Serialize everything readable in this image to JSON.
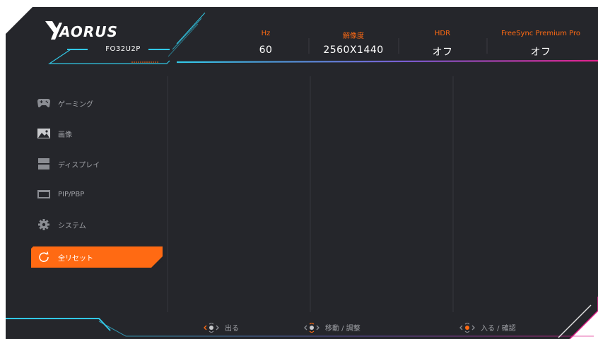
{
  "brand": {
    "logo_text": "AORUS",
    "model": "FO32U2P"
  },
  "colors": {
    "background": "#25262b",
    "accent": "#ff6a13",
    "cyan": "#32c8e6",
    "magenta": "#d1208d",
    "muted_text": "#a0a2a7"
  },
  "header": {
    "columns": [
      {
        "label": "Hz",
        "value": "60"
      },
      {
        "label": "解像度",
        "value": "2560X1440"
      },
      {
        "label": "HDR",
        "value": "オフ"
      },
      {
        "label": "FreeSync Premium Pro",
        "value": "オフ"
      }
    ]
  },
  "menu": {
    "items": [
      {
        "label": "ゲーミング",
        "icon": "gamepad-icon",
        "selected": false
      },
      {
        "label": "画像",
        "icon": "picture-icon",
        "selected": false
      },
      {
        "label": "ディスプレイ",
        "icon": "display-icon",
        "selected": false
      },
      {
        "label": "PIP/PBP",
        "icon": "pip-icon",
        "selected": false
      },
      {
        "label": "システム",
        "icon": "gear-icon",
        "selected": false
      },
      {
        "label": "全リセット",
        "icon": "reset-icon",
        "selected": true
      }
    ]
  },
  "footer": {
    "hints": [
      {
        "label": "出る",
        "icon": "joystick-left-icon"
      },
      {
        "label": "移動 / 調整",
        "icon": "joystick-updown-icon"
      },
      {
        "label": "入る / 確認",
        "icon": "joystick-press-icon"
      }
    ]
  }
}
